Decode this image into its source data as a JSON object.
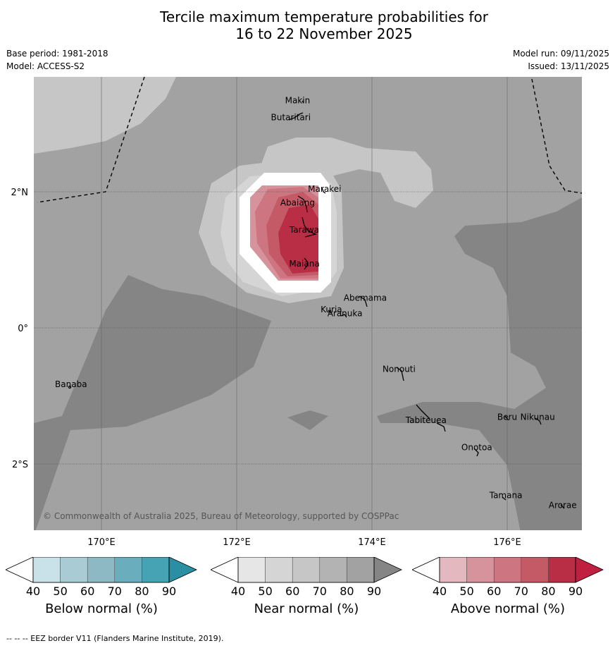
{
  "title_line1": "Tercile maximum temperature probabilities for",
  "title_line2": "16 to 22 November 2025",
  "base_period": "Base period: 1981-2018",
  "model": "Model: ACCESS-S2",
  "model_run": "Model run: 09/11/2025",
  "issued": "Issued: 13/11/2025",
  "map": {
    "lon_ticks": [
      "170°E",
      "172°E",
      "174°E",
      "176°E"
    ],
    "lat_ticks": [
      "2°N",
      "0°",
      "2°S"
    ],
    "places": [
      {
        "name": "Makin",
        "lon": 172.9,
        "lat": 3.3
      },
      {
        "name": "Butaritari",
        "lon": 172.8,
        "lat": 3.05
      },
      {
        "name": "Marakei",
        "lon": 173.3,
        "lat": 2.0
      },
      {
        "name": "Abaiang",
        "lon": 172.9,
        "lat": 1.8
      },
      {
        "name": "Tarawa",
        "lon": 173.0,
        "lat": 1.4
      },
      {
        "name": "Maiana",
        "lon": 173.0,
        "lat": 0.9
      },
      {
        "name": "Abemama",
        "lon": 173.9,
        "lat": 0.4
      },
      {
        "name": "Kuria",
        "lon": 173.4,
        "lat": 0.23
      },
      {
        "name": "Aranuka",
        "lon": 173.6,
        "lat": 0.17
      },
      {
        "name": "Nonouti",
        "lon": 174.4,
        "lat": -0.65
      },
      {
        "name": "Banaba",
        "lon": 169.55,
        "lat": -0.87
      },
      {
        "name": "Tabiteuea",
        "lon": 174.8,
        "lat": -1.4
      },
      {
        "name": "Beru",
        "lon": 176.0,
        "lat": -1.35
      },
      {
        "name": "Nikunau",
        "lon": 176.45,
        "lat": -1.35
      },
      {
        "name": "Onotoa",
        "lon": 175.55,
        "lat": -1.8
      },
      {
        "name": "Tamana",
        "lon": 175.98,
        "lat": -2.5
      },
      {
        "name": "Arorae",
        "lon": 176.82,
        "lat": -2.65
      }
    ],
    "copyright": "© Commonwealth of Australia 2025, Bureau of Meteorology, supported by COSPPac"
  },
  "colorbars": [
    {
      "label": "Below normal (%)",
      "ticks": [
        "40",
        "50",
        "60",
        "70",
        "80",
        "90"
      ],
      "colors": [
        "#ffffff",
        "#c9e2ea",
        "#a9cbd3",
        "#8cb9c4",
        "#6aadbc",
        "#46a3b3",
        "#2b8fa3"
      ]
    },
    {
      "label": "Near normal (%)",
      "ticks": [
        "40",
        "50",
        "60",
        "70",
        "80",
        "90"
      ],
      "colors": [
        "#ffffff",
        "#e6e6e6",
        "#d5d5d5",
        "#c6c6c6",
        "#b3b3b3",
        "#a2a2a2",
        "#858585"
      ]
    },
    {
      "label": "Above normal (%)",
      "ticks": [
        "40",
        "50",
        "60",
        "70",
        "80",
        "90"
      ],
      "colors": [
        "#ffffff",
        "#e3b8bf",
        "#d7939c",
        "#cd7580",
        "#c55a67",
        "#b92e45",
        "#bf2040"
      ]
    }
  ],
  "footer": "--  --  -- EEZ border V11 (Flanders Marine Institute, 2019)."
}
